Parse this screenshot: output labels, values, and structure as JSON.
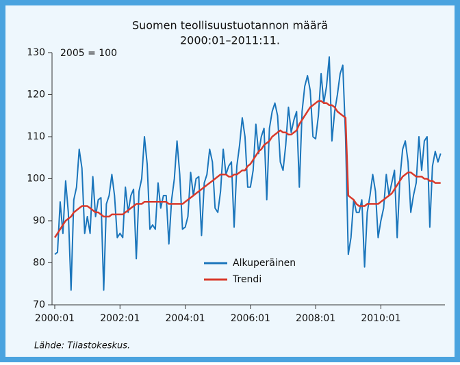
{
  "chart_data": {
    "type": "line",
    "title": "Suomen teollisuustuotannon määrä",
    "subtitle": "2000:01–2011:11.",
    "annotation": "2005 = 100",
    "source": "Lähde: Tilastokeskus.",
    "categories": [
      "2000:01",
      null,
      null,
      null,
      null,
      null,
      null,
      null,
      null,
      null,
      null,
      null,
      null,
      null,
      null,
      null,
      null,
      null,
      null,
      null,
      null,
      null,
      null,
      null,
      "2002:01",
      null,
      null,
      null,
      null,
      null,
      null,
      null,
      null,
      null,
      null,
      null,
      null,
      null,
      null,
      null,
      null,
      null,
      null,
      null,
      null,
      null,
      null,
      null,
      "2004:01",
      null,
      null,
      null,
      null,
      null,
      null,
      null,
      null,
      null,
      null,
      null,
      null,
      null,
      null,
      null,
      null,
      null,
      null,
      null,
      null,
      null,
      null,
      null,
      "2006:01",
      null,
      null,
      null,
      null,
      null,
      null,
      null,
      null,
      null,
      null,
      null,
      null,
      null,
      null,
      null,
      null,
      null,
      null,
      null,
      null,
      null,
      null,
      null,
      "2008:01",
      null,
      null,
      null,
      null,
      null,
      null,
      null,
      null,
      null,
      null,
      null,
      null,
      null,
      null,
      null,
      null,
      null,
      null,
      null,
      null,
      null,
      null,
      null,
      "2010:01",
      null,
      null,
      null,
      null,
      null,
      null,
      null,
      null,
      null,
      null,
      null,
      null,
      null,
      null,
      null,
      null,
      null,
      null,
      null,
      null,
      null,
      null
    ],
    "series": [
      {
        "name": "Alkuperäinen",
        "color": "#1a75bb",
        "values": [
          82,
          82.5,
          94.5,
          87,
          99.5,
          92,
          73.5,
          95,
          98,
          107,
          102.5,
          87,
          91,
          87,
          100.5,
          91,
          95,
          95.5,
          73.5,
          94,
          96,
          101,
          96,
          86,
          87,
          86,
          98,
          92,
          96,
          97.5,
          81,
          97,
          100,
          110,
          103.5,
          88,
          89,
          88,
          99,
          93,
          96,
          96,
          84.5,
          95,
          100,
          109,
          101,
          88,
          88.5,
          91,
          101.5,
          96,
          100,
          100.5,
          86.5,
          99,
          101,
          107,
          104,
          93,
          92,
          97,
          107,
          101,
          103,
          104,
          88.5,
          103,
          108,
          114.5,
          110,
          98,
          98,
          102,
          113,
          106,
          110,
          112,
          95,
          112,
          116,
          118,
          115,
          104,
          102,
          108,
          117,
          111,
          114,
          116,
          98,
          116,
          122,
          124.5,
          121,
          110,
          109.5,
          115,
          125,
          118,
          122,
          129,
          109,
          116,
          120,
          125,
          127,
          110,
          82,
          86,
          95,
          92,
          92,
          95,
          79,
          92,
          96,
          101,
          97,
          86,
          90,
          93,
          101,
          96,
          99,
          102,
          86,
          100,
          107,
          109,
          104,
          92,
          96,
          99,
          110,
          102,
          109,
          110,
          88.5,
          103,
          106.5,
          104,
          106
        ]
      },
      {
        "name": "Trendi",
        "color": "#d8392b",
        "values": [
          86,
          87,
          88,
          89,
          90,
          90.5,
          91,
          92,
          92.5,
          93,
          93.5,
          93.5,
          93.5,
          93,
          92.5,
          92,
          92,
          91.5,
          91,
          91,
          91,
          91.5,
          91.5,
          91.5,
          91.5,
          91.5,
          92,
          92.5,
          93,
          93.5,
          94,
          94,
          94,
          94.5,
          94.5,
          94.5,
          94.5,
          94.5,
          94.5,
          94.5,
          94.5,
          94.5,
          94,
          94,
          94,
          94,
          94,
          94,
          94.5,
          95,
          95.5,
          96,
          96.5,
          97,
          97.5,
          98,
          98.5,
          99,
          99.5,
          100,
          100.5,
          101,
          101,
          101,
          100.5,
          100.5,
          101,
          101,
          101.5,
          102,
          102,
          103,
          103.5,
          104.5,
          105.5,
          106.5,
          107,
          108,
          108.5,
          109,
          110,
          110.5,
          111,
          111.5,
          111,
          111,
          110.5,
          110.5,
          111,
          111.5,
          113,
          114,
          115,
          116,
          117,
          117.5,
          118,
          118.5,
          118.5,
          118,
          118,
          117.5,
          117.5,
          117,
          116,
          115.5,
          115,
          114.5,
          96,
          95.5,
          95,
          94,
          93.5,
          93.5,
          93.5,
          94,
          94,
          94,
          94,
          94,
          94.5,
          95,
          95.5,
          96,
          96.5,
          97.5,
          98.5,
          99.5,
          100.5,
          101,
          101.5,
          101.5,
          101,
          100.5,
          100.5,
          100.5,
          100,
          100,
          99.5,
          99.5,
          99,
          99,
          99
        ]
      }
    ],
    "ylim": [
      70,
      130
    ],
    "yticks": [
      70,
      80,
      90,
      100,
      110,
      120,
      130
    ]
  }
}
